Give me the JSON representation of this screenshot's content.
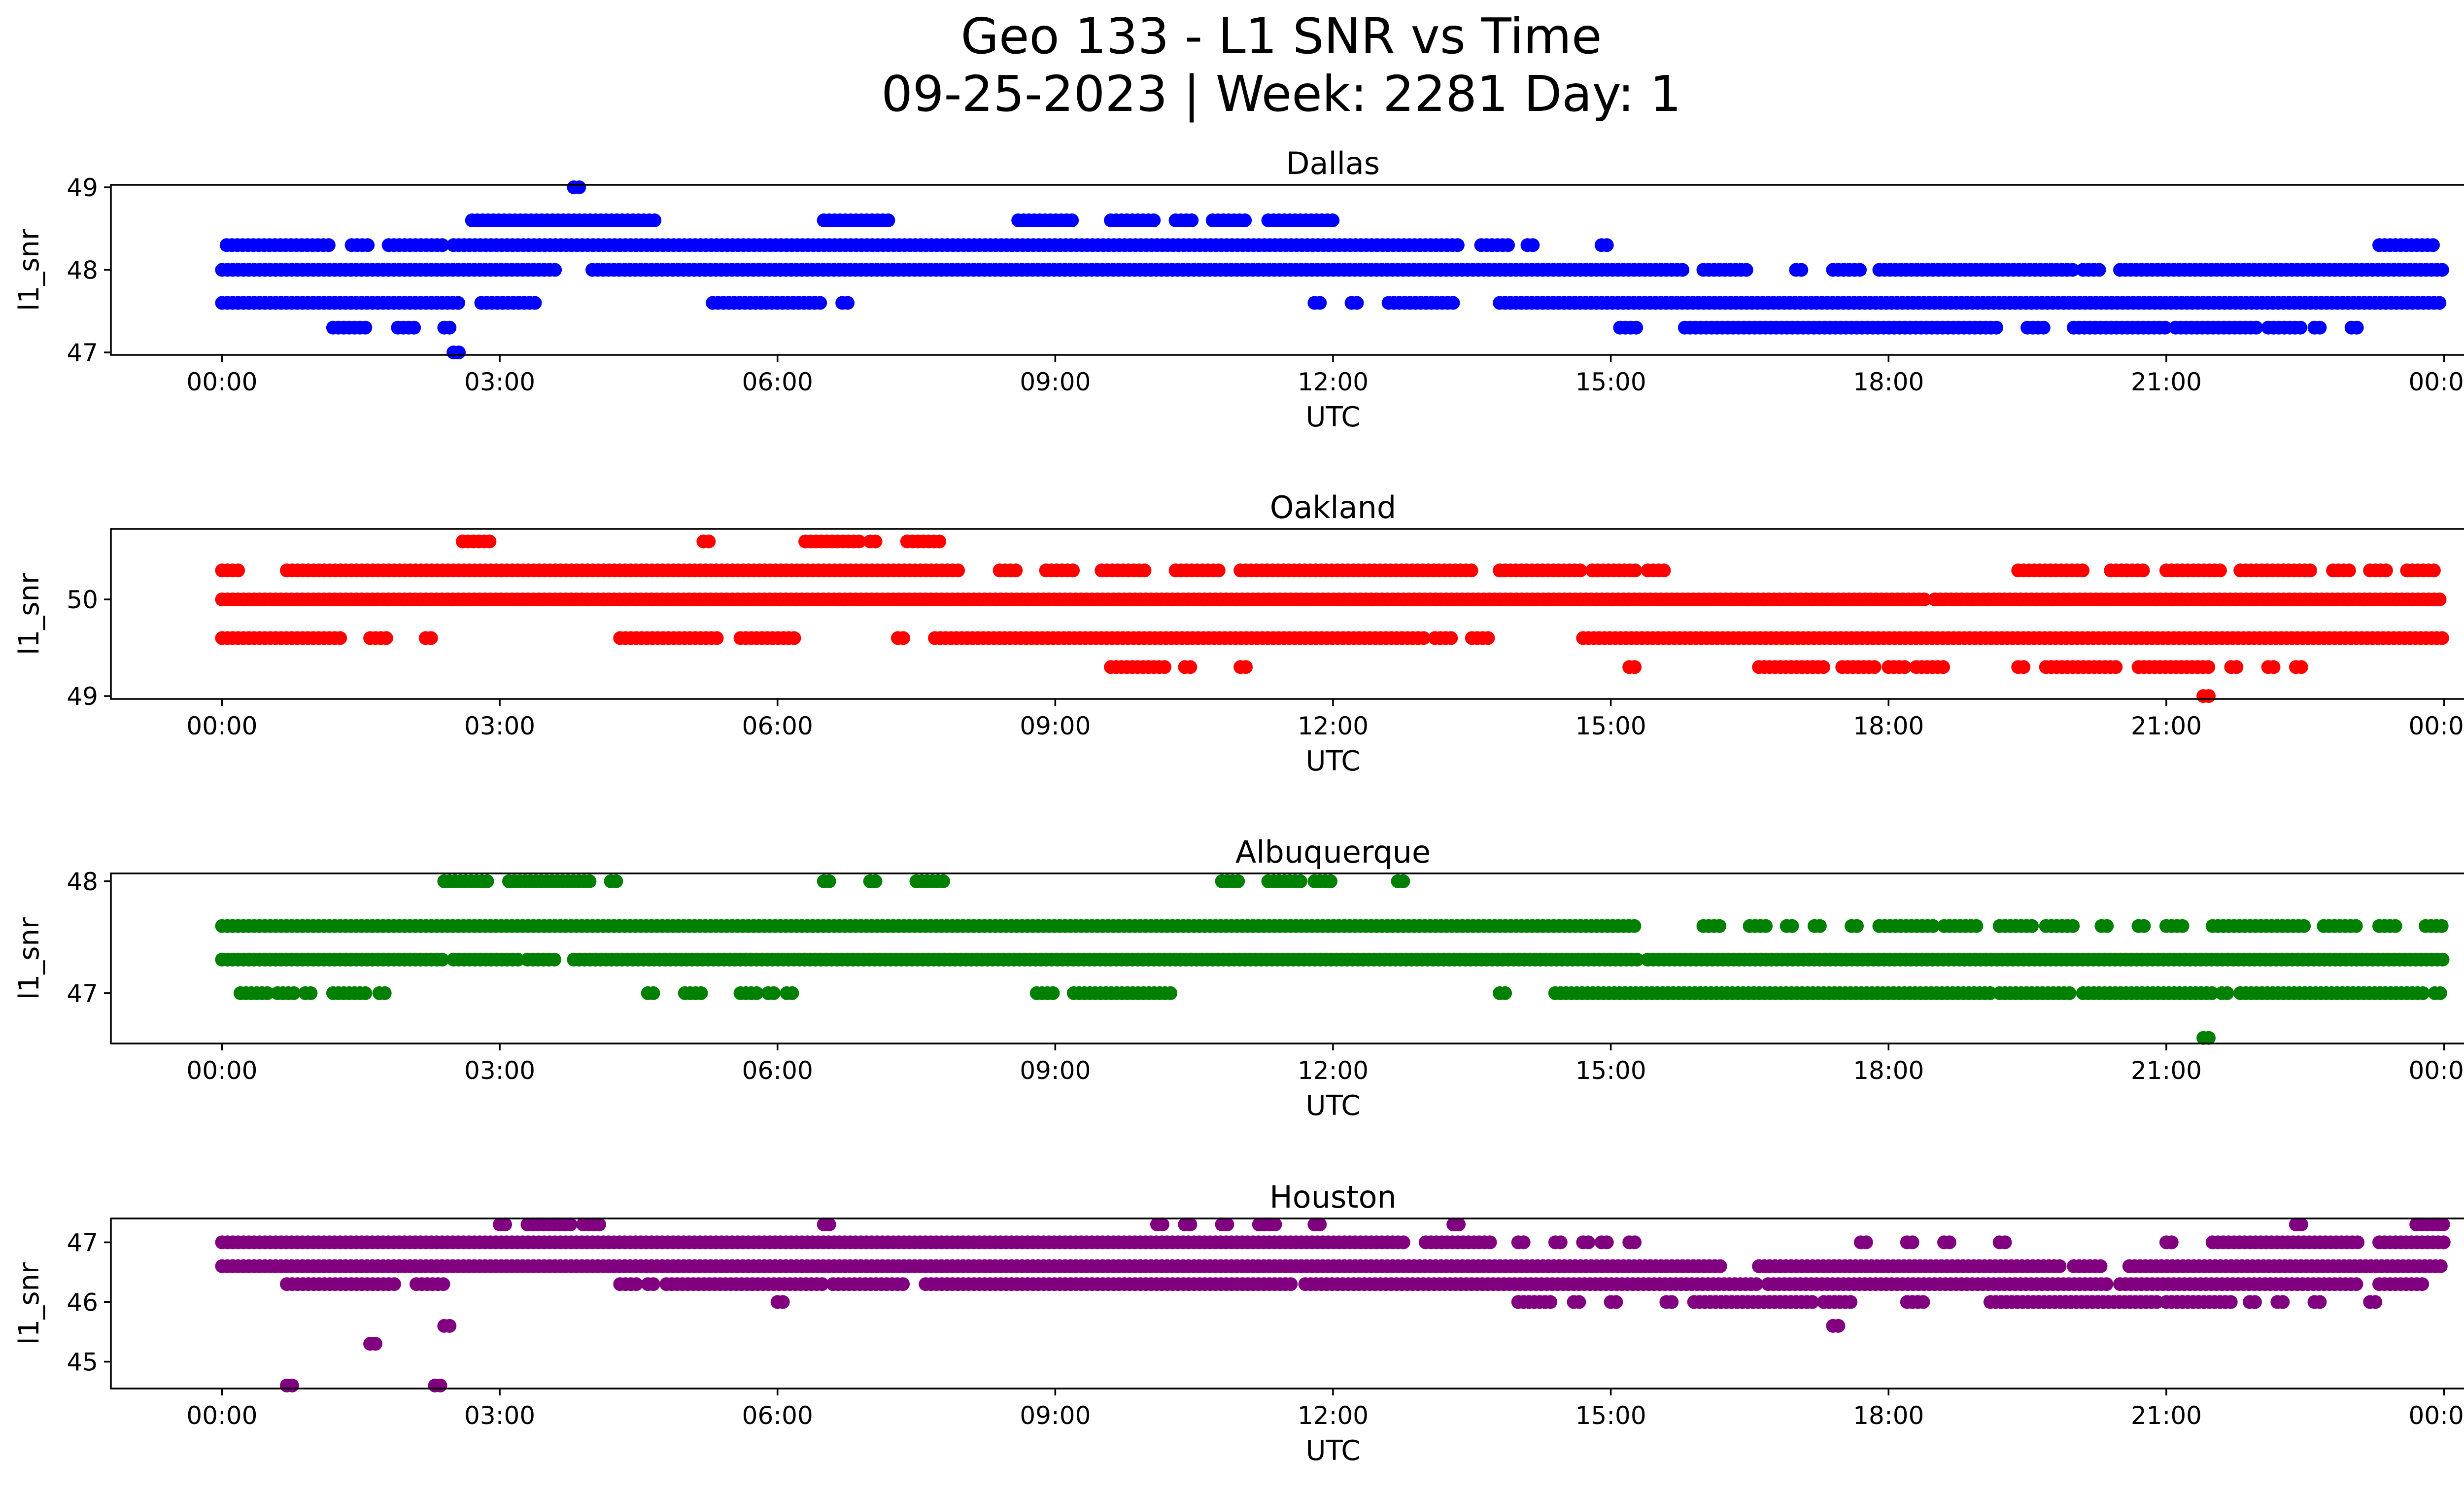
{
  "title_line1": "Geo 133 - L1 SNR vs Time",
  "title_line2": "09-25-2023 | Week: 2281 Day: 1",
  "chart_data": [
    {
      "type": "scatter",
      "title": "Dallas",
      "xlabel": "UTC",
      "ylabel": "l1_snr",
      "color": "#0000ff",
      "x_ticks": [
        "00:00",
        "03:00",
        "06:00",
        "09:00",
        "12:00",
        "15:00",
        "18:00",
        "21:00",
        "00:00"
      ],
      "x_tick_hours": [
        0,
        3,
        6,
        9,
        12,
        15,
        18,
        21,
        24
      ],
      "xlim_hours": [
        -1.2,
        25.2
      ],
      "y_ticks": [
        "47",
        "48",
        "49"
      ],
      "y_tick_values": [
        47,
        48,
        49
      ],
      "ylim": [
        46.97,
        49.03
      ],
      "levels": [
        {
          "y": 49.0,
          "ranges": [
            [
              3.8,
              3.9
            ]
          ]
        },
        {
          "y": 48.6,
          "ranges": [
            [
              2.7,
              4.7
            ],
            [
              6.5,
              7.2
            ],
            [
              8.6,
              9.2
            ],
            [
              9.6,
              10.1
            ],
            [
              10.3,
              10.5
            ],
            [
              10.7,
              11.1
            ],
            [
              11.3,
              12.0
            ]
          ]
        },
        {
          "y": 48.3,
          "ranges": [
            [
              0.05,
              1.2
            ],
            [
              1.4,
              1.6
            ],
            [
              1.8,
              2.4
            ],
            [
              2.5,
              13.4
            ],
            [
              13.6,
              13.9
            ],
            [
              14.1,
              14.2
            ],
            [
              14.9,
              15.0
            ],
            [
              23.3,
              23.9
            ]
          ]
        },
        {
          "y": 48.0,
          "ranges": [
            [
              0.0,
              3.6
            ],
            [
              4.0,
              15.8
            ],
            [
              16.0,
              16.5
            ],
            [
              17.0,
              17.1
            ],
            [
              17.4,
              17.7
            ],
            [
              17.9,
              20.0
            ],
            [
              20.1,
              20.3
            ],
            [
              20.5,
              24.0
            ]
          ]
        },
        {
          "y": 47.6,
          "ranges": [
            [
              0.0,
              2.6
            ],
            [
              2.8,
              3.4
            ],
            [
              5.3,
              6.5
            ],
            [
              6.7,
              6.8
            ],
            [
              11.8,
              11.9
            ],
            [
              12.2,
              12.3
            ],
            [
              12.6,
              13.3
            ],
            [
              13.8,
              24.0
            ]
          ]
        },
        {
          "y": 47.3,
          "ranges": [
            [
              1.2,
              1.6
            ],
            [
              1.9,
              2.1
            ],
            [
              2.4,
              2.5
            ],
            [
              15.1,
              15.3
            ],
            [
              15.8,
              19.2
            ],
            [
              19.5,
              19.7
            ],
            [
              20.0,
              21.0
            ],
            [
              21.1,
              22.0
            ],
            [
              22.1,
              22.5
            ],
            [
              22.6,
              22.7
            ],
            [
              23.0,
              23.1
            ]
          ]
        },
        {
          "y": 47.0,
          "ranges": [
            [
              2.5,
              2.6
            ]
          ]
        }
      ]
    },
    {
      "type": "scatter",
      "title": "Oakland",
      "xlabel": "UTC",
      "ylabel": "l1_snr",
      "color": "#ff0000",
      "x_ticks": [
        "00:00",
        "03:00",
        "06:00",
        "09:00",
        "12:00",
        "15:00",
        "18:00",
        "21:00",
        "00:00"
      ],
      "x_tick_hours": [
        0,
        3,
        6,
        9,
        12,
        15,
        18,
        21,
        24
      ],
      "xlim_hours": [
        -1.2,
        25.2
      ],
      "y_ticks": [
        "49",
        "50"
      ],
      "y_tick_values": [
        49,
        50
      ],
      "ylim": [
        48.97,
        50.73
      ],
      "levels": [
        {
          "y": 50.6,
          "ranges": [
            [
              2.6,
              2.9
            ],
            [
              5.2,
              5.3
            ],
            [
              6.3,
              6.9
            ],
            [
              7.0,
              7.1
            ],
            [
              7.4,
              7.8
            ]
          ]
        },
        {
          "y": 50.3,
          "ranges": [
            [
              0.0,
              0.2
            ],
            [
              0.7,
              8.0
            ],
            [
              8.4,
              8.6
            ],
            [
              8.9,
              9.2
            ],
            [
              9.5,
              10.0
            ],
            [
              10.3,
              10.8
            ],
            [
              11.0,
              13.5
            ],
            [
              13.8,
              14.7
            ],
            [
              14.8,
              15.3
            ],
            [
              15.4,
              15.6
            ],
            [
              19.4,
              20.1
            ],
            [
              20.4,
              20.8
            ],
            [
              21.0,
              21.6
            ],
            [
              21.8,
              22.6
            ],
            [
              22.8,
              23.0
            ],
            [
              23.2,
              23.4
            ],
            [
              23.6,
              23.9
            ]
          ]
        },
        {
          "y": 50.0,
          "ranges": [
            [
              0.0,
              18.4
            ],
            [
              18.5,
              24.0
            ]
          ]
        },
        {
          "y": 49.6,
          "ranges": [
            [
              0.0,
              1.3
            ],
            [
              1.6,
              1.8
            ],
            [
              2.2,
              2.3
            ],
            [
              4.3,
              5.4
            ],
            [
              5.6,
              6.2
            ],
            [
              7.3,
              7.4
            ],
            [
              7.7,
              13.0
            ],
            [
              13.1,
              13.3
            ],
            [
              13.5,
              13.7
            ],
            [
              14.7,
              24.0
            ]
          ]
        },
        {
          "y": 49.3,
          "ranges": [
            [
              9.6,
              10.2
            ],
            [
              10.4,
              10.5
            ],
            [
              11.0,
              11.1
            ],
            [
              15.2,
              15.3
            ],
            [
              16.6,
              17.3
            ],
            [
              17.5,
              17.9
            ],
            [
              18.0,
              18.2
            ],
            [
              18.3,
              18.6
            ],
            [
              19.4,
              19.5
            ],
            [
              19.7,
              20.5
            ],
            [
              20.7,
              21.5
            ],
            [
              21.7,
              21.8
            ],
            [
              22.1,
              22.2
            ],
            [
              22.4,
              22.5
            ]
          ]
        },
        {
          "y": 49.0,
          "ranges": [
            [
              21.4,
              21.5
            ]
          ]
        }
      ]
    },
    {
      "type": "scatter",
      "title": "Albuquerque",
      "xlabel": "UTC",
      "ylabel": "l1_snr",
      "color": "#008000",
      "x_ticks": [
        "00:00",
        "03:00",
        "06:00",
        "09:00",
        "12:00",
        "15:00",
        "18:00",
        "21:00",
        "00:00"
      ],
      "x_tick_hours": [
        0,
        3,
        6,
        9,
        12,
        15,
        18,
        21,
        24
      ],
      "xlim_hours": [
        -1.2,
        25.2
      ],
      "y_ticks": [
        "47",
        "48"
      ],
      "y_tick_values": [
        47,
        48
      ],
      "ylim": [
        46.55,
        48.07
      ],
      "levels": [
        {
          "y": 48.0,
          "ranges": [
            [
              2.4,
              2.9
            ],
            [
              3.1,
              4.0
            ],
            [
              4.2,
              4.3
            ],
            [
              6.5,
              6.6
            ],
            [
              7.0,
              7.1
            ],
            [
              7.5,
              7.8
            ],
            [
              10.8,
              11.0
            ],
            [
              11.3,
              11.7
            ],
            [
              11.8,
              12.0
            ],
            [
              12.7,
              12.8
            ]
          ]
        },
        {
          "y": 47.6,
          "ranges": [
            [
              0.0,
              15.3
            ],
            [
              16.0,
              16.2
            ],
            [
              16.5,
              16.7
            ],
            [
              16.9,
              17.0
            ],
            [
              17.2,
              17.3
            ],
            [
              17.6,
              17.7
            ],
            [
              17.9,
              18.5
            ],
            [
              18.6,
              19.0
            ],
            [
              19.2,
              19.6
            ],
            [
              19.7,
              20.0
            ],
            [
              20.3,
              20.4
            ],
            [
              20.7,
              20.8
            ],
            [
              21.0,
              21.2
            ],
            [
              21.5,
              22.5
            ],
            [
              22.7,
              23.1
            ],
            [
              23.3,
              23.5
            ],
            [
              23.8,
              24.0
            ]
          ]
        },
        {
          "y": 47.3,
          "ranges": [
            [
              0.0,
              2.4
            ],
            [
              2.5,
              3.2
            ],
            [
              3.3,
              3.6
            ],
            [
              3.8,
              15.3
            ],
            [
              15.4,
              24.0
            ]
          ]
        },
        {
          "y": 47.0,
          "ranges": [
            [
              0.2,
              0.5
            ],
            [
              0.6,
              0.8
            ],
            [
              0.9,
              1.0
            ],
            [
              1.2,
              1.6
            ],
            [
              1.7,
              1.8
            ],
            [
              4.6,
              4.7
            ],
            [
              5.0,
              5.2
            ],
            [
              5.6,
              5.8
            ],
            [
              5.9,
              6.0
            ],
            [
              6.1,
              6.2
            ],
            [
              8.8,
              9.0
            ],
            [
              9.2,
              10.3
            ],
            [
              13.8,
              13.9
            ],
            [
              14.4,
              19.1
            ],
            [
              19.2,
              20.0
            ],
            [
              20.1,
              21.5
            ],
            [
              21.6,
              21.7
            ],
            [
              21.8,
              23.8
            ],
            [
              23.9,
              24.0
            ]
          ]
        },
        {
          "y": 46.6,
          "ranges": [
            [
              21.4,
              21.5
            ]
          ]
        }
      ]
    },
    {
      "type": "scatter",
      "title": "Houston",
      "xlabel": "UTC",
      "ylabel": "l1_snr",
      "color": "#800080",
      "x_ticks": [
        "00:00",
        "03:00",
        "06:00",
        "09:00",
        "12:00",
        "15:00",
        "18:00",
        "21:00",
        "00:00"
      ],
      "x_tick_hours": [
        0,
        3,
        6,
        9,
        12,
        15,
        18,
        21,
        24
      ],
      "xlim_hours": [
        -1.2,
        25.2
      ],
      "y_ticks": [
        "45",
        "46",
        "47"
      ],
      "y_tick_values": [
        45,
        46,
        47
      ],
      "ylim": [
        44.55,
        47.4
      ],
      "levels": [
        {
          "y": 47.3,
          "ranges": [
            [
              3.0,
              3.1
            ],
            [
              3.3,
              3.8
            ],
            [
              3.9,
              4.1
            ],
            [
              6.5,
              6.6
            ],
            [
              10.1,
              10.2
            ],
            [
              10.4,
              10.5
            ],
            [
              10.8,
              10.9
            ],
            [
              11.2,
              11.4
            ],
            [
              11.8,
              11.9
            ],
            [
              13.3,
              13.4
            ],
            [
              22.4,
              22.5
            ],
            [
              23.7,
              24.0
            ]
          ]
        },
        {
          "y": 47.0,
          "ranges": [
            [
              0.0,
              12.8
            ],
            [
              13.0,
              13.7
            ],
            [
              14.0,
              14.1
            ],
            [
              14.4,
              14.5
            ],
            [
              14.7,
              14.8
            ],
            [
              14.9,
              15.0
            ],
            [
              15.2,
              15.3
            ],
            [
              17.7,
              17.8
            ],
            [
              18.2,
              18.3
            ],
            [
              18.6,
              18.7
            ],
            [
              19.2,
              19.3
            ],
            [
              21.0,
              21.1
            ],
            [
              21.5,
              23.1
            ],
            [
              23.3,
              24.0
            ]
          ]
        },
        {
          "y": 46.6,
          "ranges": [
            [
              0.0,
              16.2
            ],
            [
              16.6,
              19.9
            ],
            [
              20.0,
              20.3
            ],
            [
              20.6,
              24.0
            ]
          ]
        },
        {
          "y": 46.3,
          "ranges": [
            [
              0.7,
              1.9
            ],
            [
              2.1,
              2.4
            ],
            [
              4.3,
              4.5
            ],
            [
              4.6,
              4.7
            ],
            [
              4.8,
              6.5
            ],
            [
              6.6,
              7.4
            ],
            [
              7.6,
              11.6
            ],
            [
              11.7,
              16.6
            ],
            [
              16.7,
              20.4
            ],
            [
              20.5,
              23.1
            ],
            [
              23.3,
              23.8
            ]
          ]
        },
        {
          "y": 46.0,
          "ranges": [
            [
              6.0,
              6.1
            ],
            [
              14.0,
              14.4
            ],
            [
              14.6,
              14.7
            ],
            [
              15.0,
              15.1
            ],
            [
              15.6,
              15.7
            ],
            [
              15.9,
              17.2
            ],
            [
              17.3,
              17.6
            ],
            [
              18.2,
              18.4
            ],
            [
              19.1,
              20.9
            ],
            [
              21.0,
              21.7
            ],
            [
              21.9,
              22.0
            ],
            [
              22.2,
              22.3
            ],
            [
              22.6,
              22.7
            ],
            [
              23.2,
              23.3
            ]
          ]
        },
        {
          "y": 45.6,
          "ranges": [
            [
              2.4,
              2.5
            ],
            [
              17.4,
              17.5
            ]
          ]
        },
        {
          "y": 45.3,
          "ranges": [
            [
              1.6,
              1.7
            ]
          ]
        },
        {
          "y": 44.6,
          "ranges": [
            [
              0.7,
              0.8
            ],
            [
              2.3,
              2.4
            ]
          ]
        }
      ]
    }
  ]
}
